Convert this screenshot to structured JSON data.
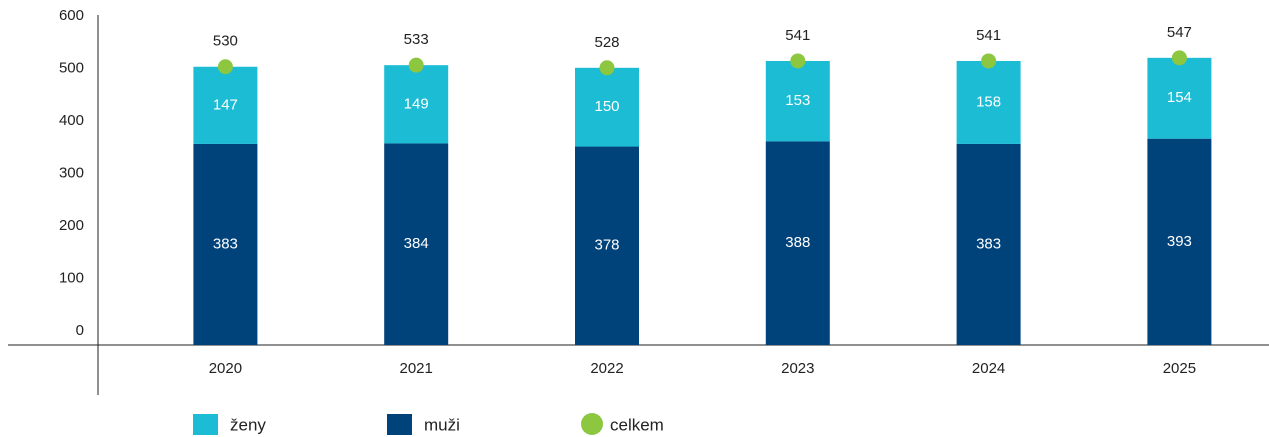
{
  "chart_data": {
    "type": "stacked_bar",
    "categories": [
      "2020",
      "2021",
      "2022",
      "2023",
      "2024",
      "2025"
    ],
    "series": [
      {
        "name": "muži",
        "color": "#00427a",
        "values": [
          383,
          384,
          378,
          388,
          383,
          393
        ]
      },
      {
        "name": "ženy",
        "color": "#1bbcd4",
        "values": [
          147,
          149,
          150,
          153,
          158,
          154
        ]
      },
      {
        "name": "celkem",
        "color": "#8dc63f",
        "type": "marker",
        "values": [
          530,
          533,
          528,
          541,
          541,
          547
        ]
      }
    ],
    "ylim": [
      0,
      600
    ],
    "yticks": [
      0,
      100,
      200,
      300,
      400,
      500,
      600
    ],
    "grid": false
  }
}
